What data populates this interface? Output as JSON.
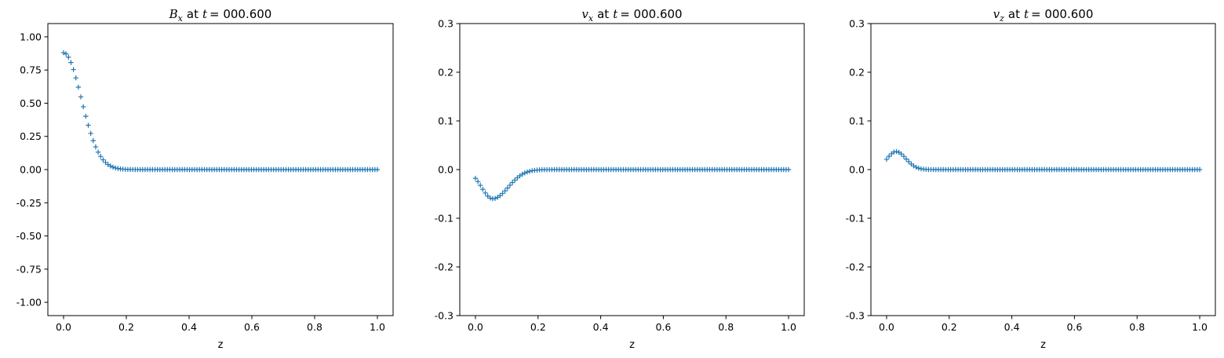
{
  "style": {
    "series_color": "#1f77b4",
    "marker": "+"
  },
  "chart_data": [
    {
      "type": "scatter",
      "title": {
        "symbol": "B",
        "subscript": "x",
        "mid": "at",
        "var": "t",
        "eq": "= 000.600"
      },
      "xlabel": "z",
      "ylabel": "",
      "xlim": [
        -0.05,
        1.05
      ],
      "ylim": [
        -1.1,
        1.1
      ],
      "xticks": [
        "0.0",
        "0.2",
        "0.4",
        "0.6",
        "0.8",
        "1.0"
      ],
      "yticks": [
        "-1.00",
        "-0.75",
        "-0.50",
        "-0.25",
        "0.00",
        "0.25",
        "0.50",
        "0.75",
        "1.00"
      ],
      "grid": false,
      "legend": "none",
      "profile": {
        "kind": "gaussian",
        "amplitude": 0.88,
        "center": 0.0,
        "width": 0.08,
        "x_start": 0.0,
        "x_end": 1.0,
        "n_points": 128
      }
    },
    {
      "type": "scatter",
      "title": {
        "symbol": "v",
        "subscript": "x",
        "mid": "at",
        "var": "t",
        "eq": "= 000.600"
      },
      "xlabel": "z",
      "ylabel": "",
      "xlim": [
        -0.05,
        1.05
      ],
      "ylim": [
        -0.3,
        0.3
      ],
      "xticks": [
        "0.0",
        "0.2",
        "0.4",
        "0.6",
        "0.8",
        "1.0"
      ],
      "yticks": [
        "-0.3",
        "-0.2",
        "-0.1",
        "0.0",
        "0.1",
        "0.2",
        "0.3"
      ],
      "grid": false,
      "legend": "none",
      "profile": {
        "kind": "skewed-bump",
        "amplitude": -0.06,
        "center": 0.055,
        "width_left": 0.05,
        "width_right": 0.07,
        "x_start": 0.0,
        "x_end": 1.0,
        "n_points": 128
      }
    },
    {
      "type": "scatter",
      "title": {
        "symbol": "v",
        "subscript": "z",
        "mid": "at",
        "var": "t",
        "eq": "= 000.600"
      },
      "xlabel": "z",
      "ylabel": "",
      "xlim": [
        -0.05,
        1.05
      ],
      "ylim": [
        -0.3,
        0.3
      ],
      "xticks": [
        "0.0",
        "0.2",
        "0.4",
        "0.6",
        "0.8",
        "1.0"
      ],
      "yticks": [
        "-0.3",
        "-0.2",
        "-0.1",
        "0.0",
        "0.1",
        "0.2",
        "0.3"
      ],
      "grid": false,
      "legend": "none",
      "profile": {
        "kind": "skewed-bump",
        "amplitude": 0.037,
        "center": 0.03,
        "width_left": 0.04,
        "width_right": 0.045,
        "x_start": 0.0,
        "x_end": 1.0,
        "n_points": 128
      }
    }
  ]
}
